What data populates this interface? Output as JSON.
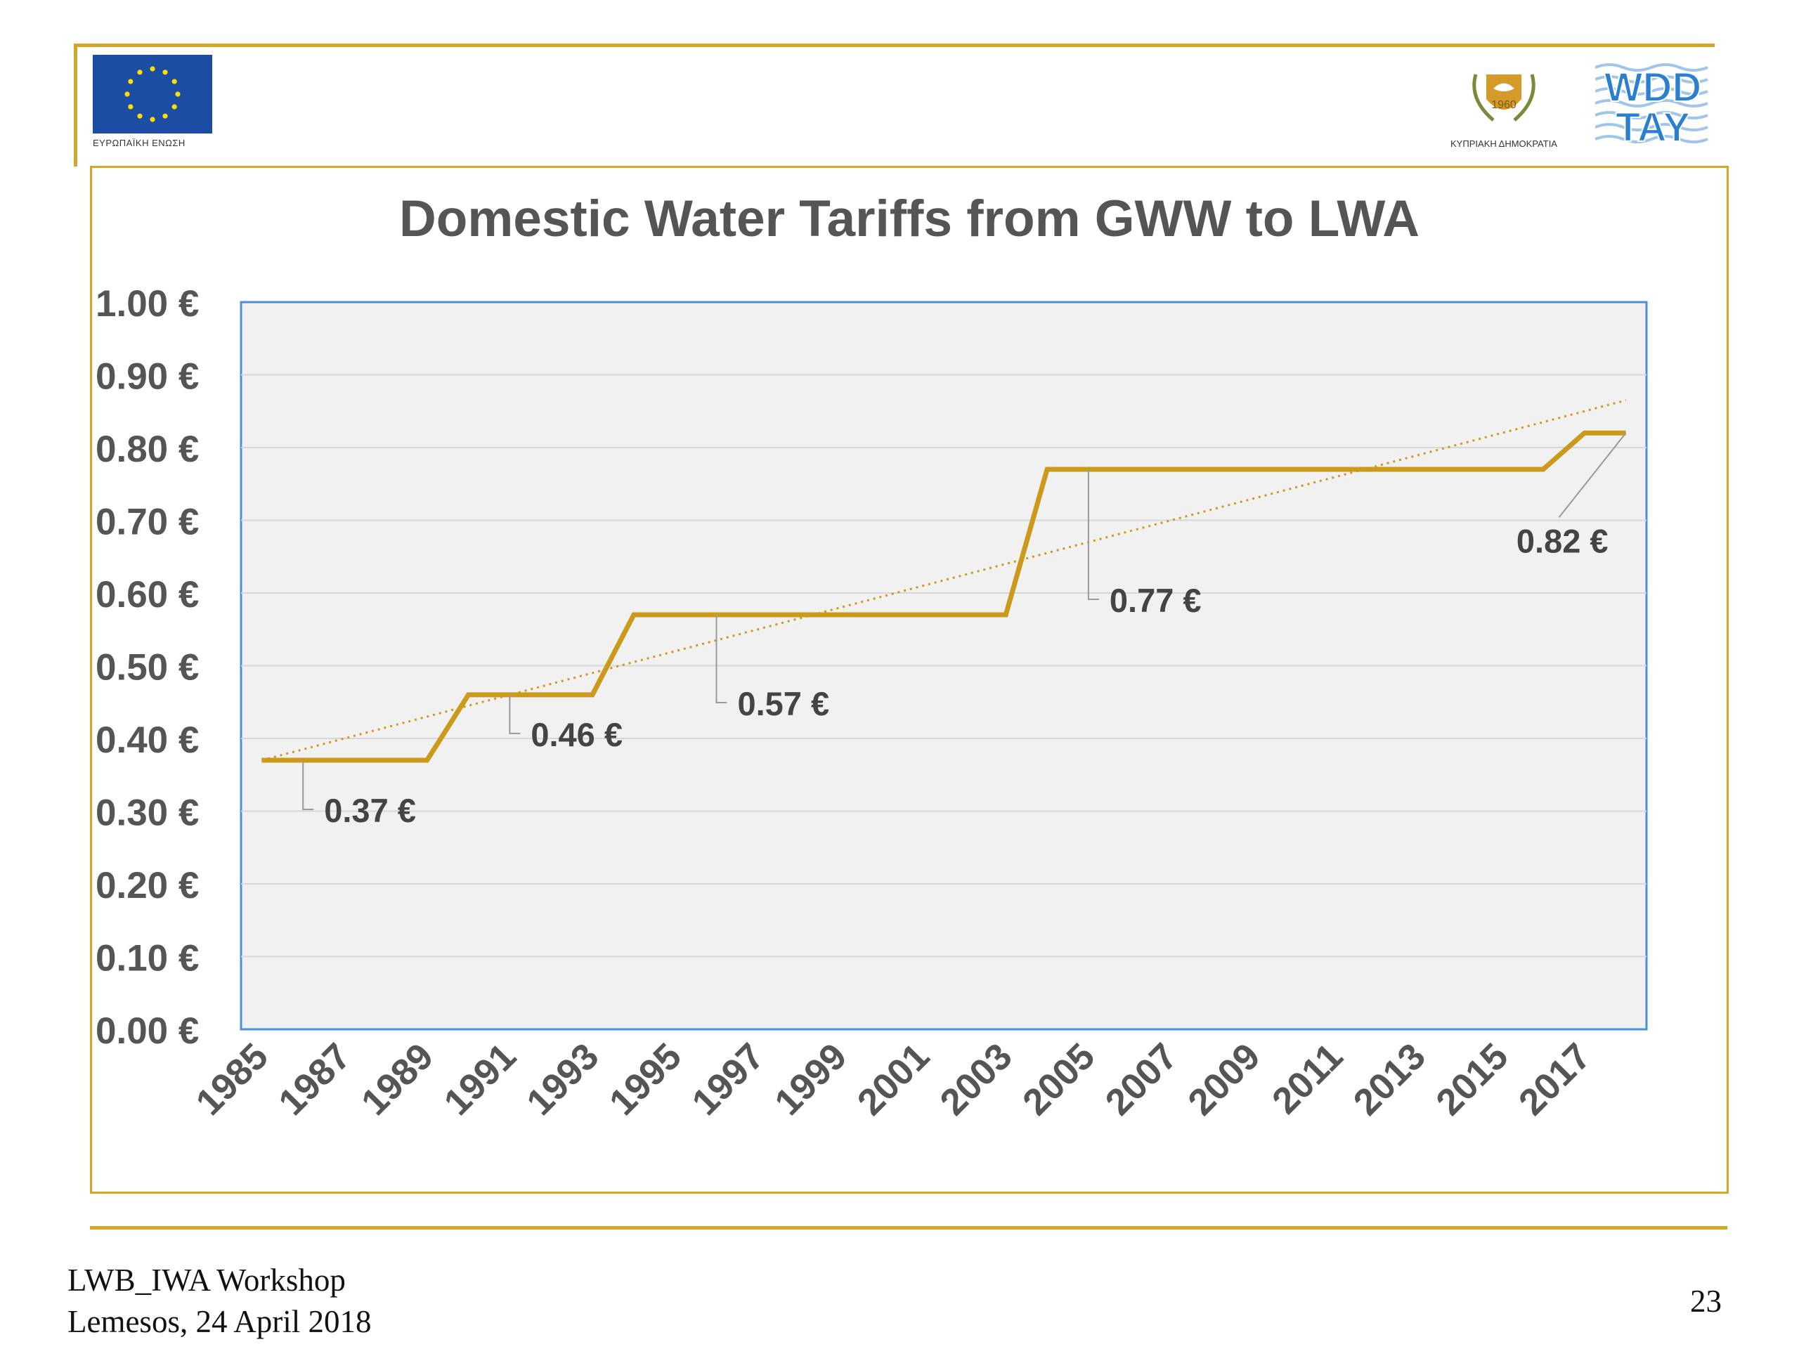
{
  "header": {
    "eu_caption": "ΕΥΡΩΠΑΪΚΗ ΕΝΩΣΗ",
    "cy_caption": "ΚΥΠΡΙΑΚΗ ΔΗΜΟΚΡΑΤΙΑ",
    "wdd_logo_top": "WDD",
    "wdd_logo_bottom": "TAY"
  },
  "colors": {
    "accent": "#d4a62a",
    "series": "#cc9a1a",
    "plot_background": "#f1f1f1",
    "plot_border": "#4a90d9",
    "eu_blue": "#1b4ea3",
    "eu_star": "#ffdd00",
    "wdd_blue": "#2a7fd0"
  },
  "chart_data": {
    "type": "line",
    "title": "Domestic Water Tariffs from GWW to LWA",
    "xlabel": "",
    "ylabel": "",
    "x": [
      1985,
      1986,
      1987,
      1988,
      1989,
      1990,
      1991,
      1992,
      1993,
      1994,
      1995,
      1996,
      1997,
      1998,
      1999,
      2000,
      2001,
      2002,
      2003,
      2004,
      2005,
      2006,
      2007,
      2008,
      2009,
      2010,
      2011,
      2012,
      2013,
      2014,
      2015,
      2016,
      2017,
      2018
    ],
    "series": [
      {
        "name": "",
        "values": [
          0.37,
          0.37,
          0.37,
          0.37,
          0.37,
          0.46,
          0.46,
          0.46,
          0.46,
          0.57,
          0.57,
          0.57,
          0.57,
          0.57,
          0.57,
          0.57,
          0.57,
          0.57,
          0.57,
          0.77,
          0.77,
          0.77,
          0.77,
          0.77,
          0.77,
          0.77,
          0.77,
          0.77,
          0.77,
          0.77,
          0.77,
          0.77,
          0.82,
          0.82
        ]
      }
    ],
    "trendline": {
      "style": "dotted",
      "start": [
        1985,
        0.37
      ],
      "end": [
        2018,
        0.865
      ]
    },
    "x_tick_labels": [
      "1985",
      "1987",
      "1989",
      "1991",
      "1993",
      "1995",
      "1997",
      "1999",
      "2001",
      "2003",
      "2005",
      "2007",
      "2009",
      "2011",
      "2013",
      "2015",
      "2017"
    ],
    "y_tick_labels": [
      "0.00 €",
      "0.10 €",
      "0.20 €",
      "0.30 €",
      "0.40 €",
      "0.50 €",
      "0.60 €",
      "0.70 €",
      "0.80 €",
      "0.90 €",
      "1.00 €"
    ],
    "ylim": [
      0,
      1
    ],
    "xlim": [
      1984.5,
      2018.5
    ],
    "grid": true,
    "legend": "none",
    "annotations": [
      {
        "text": "0.37 €",
        "x": 1986,
        "y": 0.37
      },
      {
        "text": "0.46 €",
        "x": 1991,
        "y": 0.46
      },
      {
        "text": "0.57 €",
        "x": 1996,
        "y": 0.57
      },
      {
        "text": "0.77 €",
        "x": 2005,
        "y": 0.77
      },
      {
        "text": "0.82 €",
        "x": 2018,
        "y": 0.82
      }
    ]
  },
  "footer": {
    "line1": "LWB_IWA Workshop",
    "line2": "Lemesos, 24 April 2018",
    "page_number": "23"
  }
}
